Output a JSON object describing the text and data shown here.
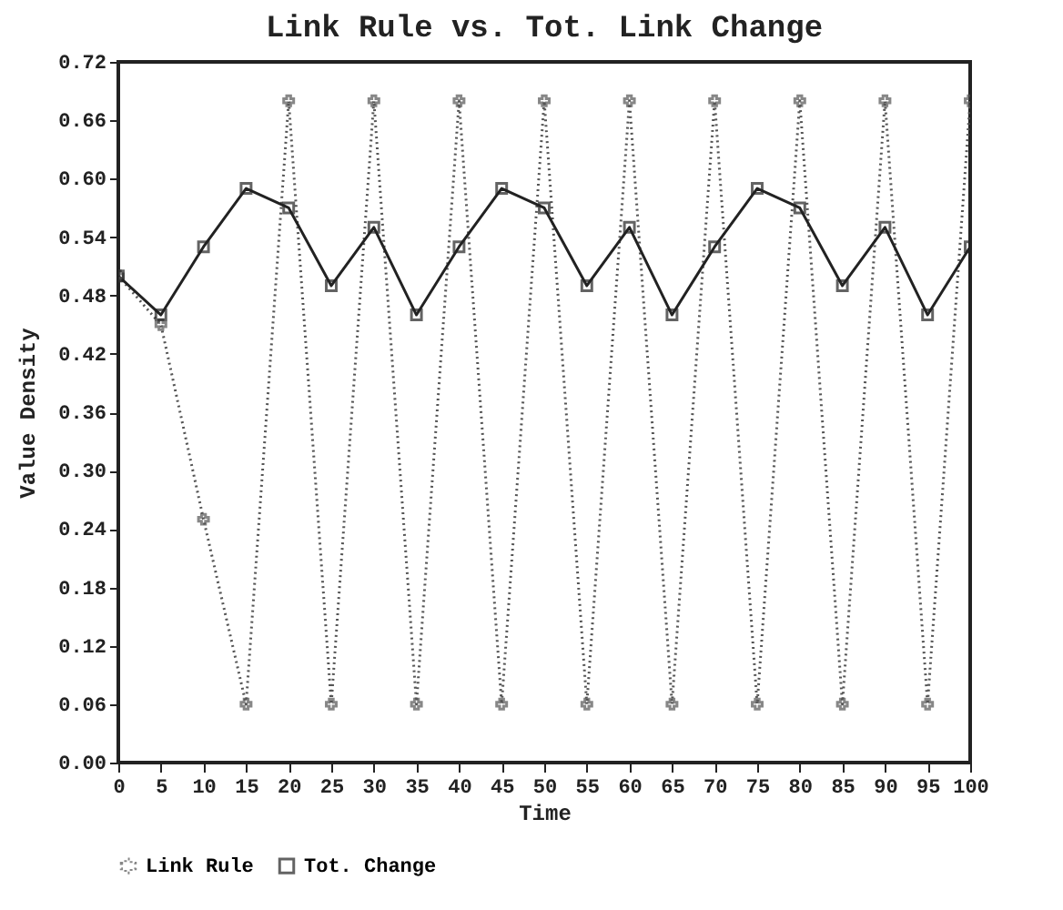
{
  "chart_data": {
    "type": "line",
    "title": "Link Rule vs. Tot. Link Change",
    "xlabel": "Time",
    "ylabel": "Value Density",
    "x": [
      0,
      5,
      10,
      15,
      20,
      25,
      30,
      35,
      40,
      45,
      50,
      55,
      60,
      65,
      70,
      75,
      80,
      85,
      90,
      95,
      100
    ],
    "series": [
      {
        "name": "Link Rule",
        "color": "#555555",
        "line_style": "dotted",
        "marker": "cross",
        "values": [
          0.5,
          0.45,
          0.25,
          0.06,
          0.68,
          0.06,
          0.68,
          0.06,
          0.68,
          0.06,
          0.68,
          0.06,
          0.68,
          0.06,
          0.68,
          0.06,
          0.68,
          0.06,
          0.68,
          0.06,
          0.68
        ]
      },
      {
        "name": "Tot. Change",
        "color": "#222222",
        "line_style": "solid",
        "marker": "square",
        "values": [
          0.5,
          0.46,
          0.53,
          0.59,
          0.57,
          0.49,
          0.55,
          0.46,
          0.53,
          0.59,
          0.57,
          0.49,
          0.55,
          0.46,
          0.53,
          0.59,
          0.57,
          0.49,
          0.55,
          0.46,
          0.53
        ]
      }
    ],
    "xlim": [
      0,
      100
    ],
    "xticks": [
      0,
      5,
      10,
      15,
      20,
      25,
      30,
      35,
      40,
      45,
      50,
      55,
      60,
      65,
      70,
      75,
      80,
      85,
      90,
      95,
      100
    ],
    "ylim": [
      0,
      0.72
    ],
    "yticks": [
      {
        "value": 0,
        "label": "0.00"
      },
      {
        "value": 0.06,
        "label": "0.06"
      },
      {
        "value": 0.12,
        "label": "0.12"
      },
      {
        "value": 0.18,
        "label": "0.18"
      },
      {
        "value": 0.24,
        "label": "0.24"
      },
      {
        "value": 0.3,
        "label": "0.30"
      },
      {
        "value": 0.36,
        "label": "0.36"
      },
      {
        "value": 0.42,
        "label": "0.42"
      },
      {
        "value": 0.48,
        "label": "0.48"
      },
      {
        "value": 0.54,
        "label": "0.54"
      },
      {
        "value": 0.6,
        "label": "0.60"
      },
      {
        "value": 0.66,
        "label": "0.66"
      },
      {
        "value": 0.72,
        "label": "0.72"
      }
    ],
    "grid": false,
    "legend": "bottom"
  }
}
